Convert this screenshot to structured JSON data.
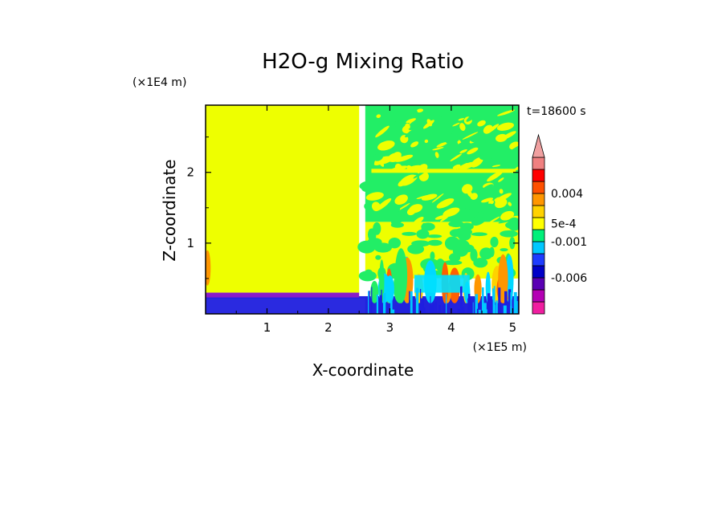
{
  "chart_data": {
    "type": "heatmap",
    "title": "H2O-g Mixing Ratio",
    "xlabel": "X-coordinate",
    "ylabel": "Z-coordinate",
    "x_unit": "(×1E5 m)",
    "y_unit": "(×1E4 m)",
    "time_label": "t=18600 s",
    "xlim": [
      0,
      5.1
    ],
    "ylim": [
      0,
      2.95
    ],
    "x_ticks": [
      {
        "value": 1,
        "label": "1"
      },
      {
        "value": 2,
        "label": "2"
      },
      {
        "value": 3,
        "label": "3"
      },
      {
        "value": 4,
        "label": "4"
      },
      {
        "value": 5,
        "label": "5"
      }
    ],
    "y_ticks": [
      {
        "value": 1,
        "label": "1"
      },
      {
        "value": 2,
        "label": "2"
      }
    ],
    "colorbar": {
      "colors": [
        "#f01ea0",
        "#b400b4",
        "#5a00b4",
        "#0000c8",
        "#1e3cff",
        "#00c8ff",
        "#00f07a",
        "#ffff00",
        "#ffd200",
        "#ff9600",
        "#ff5000",
        "#ff0000",
        "#f08080"
      ],
      "labels": [
        {
          "text": "-0.006",
          "boundary": 3
        },
        {
          "text": "-0.001",
          "boundary": 6
        },
        {
          "text": "5e-4",
          "boundary": 7.5
        },
        {
          "text": "0.004",
          "boundary": 10
        }
      ]
    },
    "regions": [
      {
        "name": "left-dry-yellow",
        "x": [
          0,
          2.5
        ],
        "z": [
          0.3,
          2.95
        ],
        "color": "#eeff00"
      },
      {
        "name": "right-upper-green",
        "x": [
          2.6,
          5.1
        ],
        "z": [
          1.3,
          2.95
        ],
        "color": "#22ee66"
      },
      {
        "name": "right-mid-yellow",
        "x": [
          2.6,
          5.1
        ],
        "z": [
          0.5,
          1.3
        ],
        "color": "#eeff00"
      },
      {
        "name": "boundary-layer-blue",
        "x": [
          0,
          5.1
        ],
        "z": [
          0,
          0.25
        ],
        "color": "#2222dd"
      }
    ]
  }
}
